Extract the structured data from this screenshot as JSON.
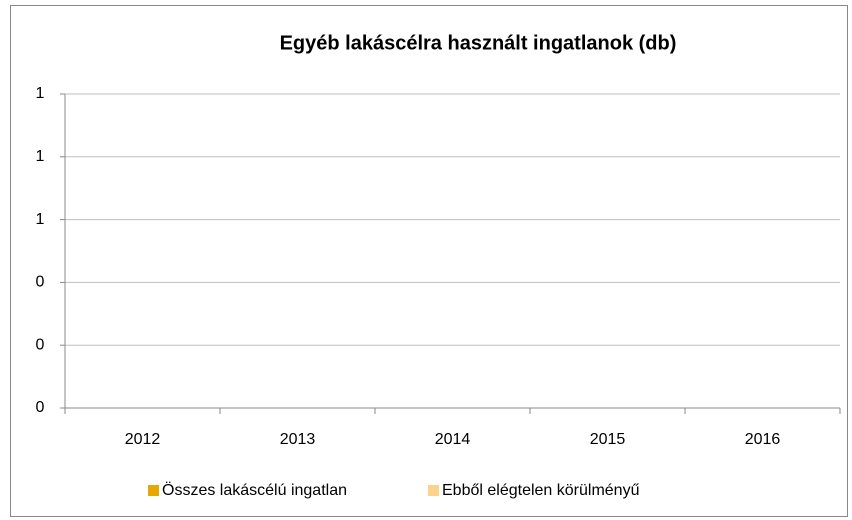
{
  "chart_data": {
    "type": "bar",
    "title": "Egyéb lakáscélra használt ingatlanok (db)",
    "categories": [
      "2012",
      "2013",
      "2014",
      "2015",
      "2016"
    ],
    "series": [
      {
        "name": "Összes lakáscélú ingatlan",
        "color": "#e6a700",
        "values": [
          0,
          0,
          0,
          0,
          0
        ]
      },
      {
        "name": "Ebből elégtelen körülményű",
        "color": "#fcd38c",
        "values": [
          0,
          0,
          0,
          0,
          0
        ]
      }
    ],
    "ylim": [
      0,
      1
    ],
    "yticks": [
      0,
      {
        "value": 0.2,
        "label": "0"
      },
      {
        "value": 0.4,
        "label": "0"
      },
      {
        "value": 0.6,
        "label": "1"
      },
      {
        "value": 0.8,
        "label": "1"
      },
      1
    ],
    "grid": true,
    "legend": "bottom"
  }
}
